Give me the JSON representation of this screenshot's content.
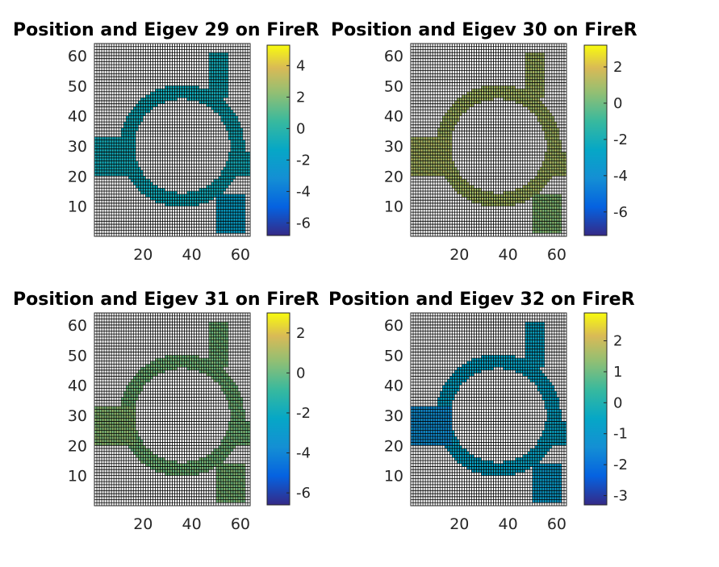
{
  "chart_data": [
    {
      "type": "heatmap",
      "title": "Position and Eigev 29 on FireR",
      "xlim": [
        0,
        64
      ],
      "ylim": [
        0,
        64
      ],
      "xticks": [
        20,
        40,
        60
      ],
      "yticks": [
        10,
        20,
        30,
        40,
        50,
        60
      ],
      "colorbar": {
        "range": [
          -6.8,
          5.3
        ],
        "ticks": [
          4,
          2,
          0,
          -2,
          -4,
          -6
        ]
      },
      "colormap": "parula",
      "grid": true,
      "path_value": -0.8,
      "notes_values": {
        "upper_left_patch": -0.8,
        "bottom_right_patch": -1.8
      }
    },
    {
      "type": "heatmap",
      "title": "Position and Eigev 30 on FireR",
      "xlim": [
        0,
        64
      ],
      "ylim": [
        0,
        64
      ],
      "xticks": [
        20,
        40,
        60
      ],
      "yticks": [
        10,
        20,
        30,
        40,
        50,
        60
      ],
      "colorbar": {
        "range": [
          -7.3,
          3.2
        ],
        "ticks": [
          2,
          0,
          -2,
          -4,
          -6
        ]
      },
      "colormap": "parula",
      "grid": true,
      "path_value": 1.0,
      "notes_values": {
        "upper_left_patch": 1.1,
        "bottom_right_patch": 0.4
      }
    },
    {
      "type": "heatmap",
      "title": "Position and Eigev 31 on FireR",
      "xlim": [
        0,
        64
      ],
      "ylim": [
        0,
        64
      ],
      "xticks": [
        20,
        40,
        60
      ],
      "yticks": [
        10,
        20,
        30,
        40,
        50,
        60
      ],
      "colorbar": {
        "range": [
          -6.6,
          3.0
        ],
        "ticks": [
          2,
          0,
          -2,
          -4,
          -6
        ]
      },
      "colormap": "parula",
      "grid": true,
      "path_value": 0.2,
      "notes_values": {
        "upper_left_patch": 0.5,
        "bottom_right_patch": 0.3
      }
    },
    {
      "type": "heatmap",
      "title": "Position and Eigev 32  on FireR",
      "xlim": [
        0,
        64
      ],
      "ylim": [
        0,
        64
      ],
      "xticks": [
        20,
        40,
        60
      ],
      "yticks": [
        10,
        20,
        30,
        40,
        50,
        60
      ],
      "colorbar": {
        "range": [
          -3.3,
          2.9
        ],
        "ticks": [
          2,
          1,
          0,
          -1,
          -2,
          -3
        ]
      },
      "colormap": "parula",
      "grid": true,
      "path_value": -0.6,
      "notes_values": {
        "upper_left_patch": -1.4,
        "bottom_right_patch": -0.9
      }
    }
  ]
}
